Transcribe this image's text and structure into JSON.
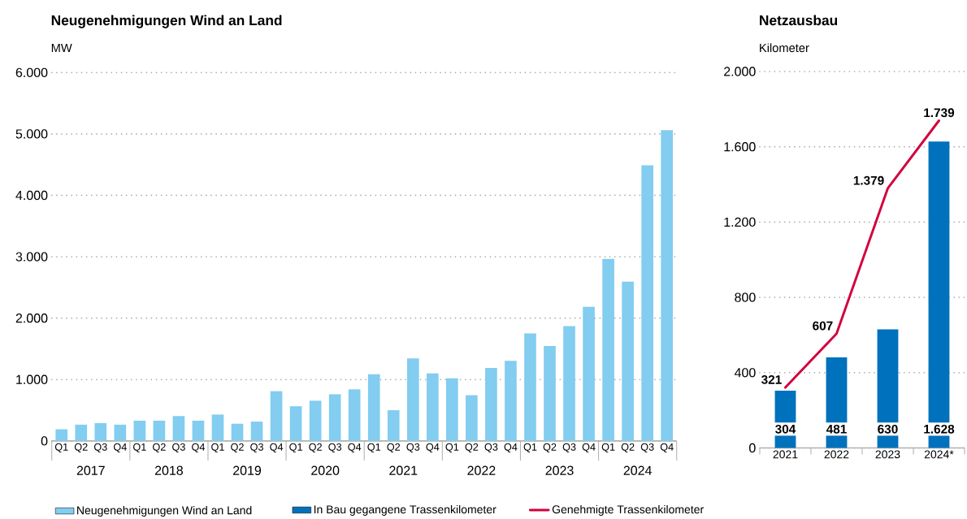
{
  "chart_data": [
    {
      "type": "bar",
      "title": "Neugenehmigungen Wind an Land",
      "ylabel": "MW",
      "categories": [
        "Q1",
        "Q2",
        "Q3",
        "Q4",
        "Q1",
        "Q2",
        "Q3",
        "Q4",
        "Q1",
        "Q2",
        "Q3",
        "Q4",
        "Q1",
        "Q2",
        "Q3",
        "Q4",
        "Q1",
        "Q2",
        "Q3",
        "Q4",
        "Q1",
        "Q2",
        "Q3",
        "Q4",
        "Q1",
        "Q2",
        "Q3",
        "Q4",
        "Q1",
        "Q2",
        "Q3",
        "Q4"
      ],
      "annotations": [
        "2017",
        "2018",
        "2019",
        "2020",
        "2021",
        "2022",
        "2023",
        "2024"
      ],
      "series": [
        {
          "name": "Neugenehmigungen Wind an Land",
          "color": "#82cdf0",
          "values": [
            190,
            265,
            290,
            265,
            330,
            330,
            405,
            330,
            430,
            280,
            315,
            810,
            565,
            655,
            760,
            840,
            1085,
            500,
            1345,
            1100,
            1020,
            745,
            1190,
            1305,
            1750,
            1545,
            1870,
            2185,
            2965,
            2595,
            4490,
            5060
          ]
        }
      ],
      "ylim": [
        0,
        6000
      ],
      "yticks": [
        0,
        {
          "value": 1000,
          "label": "1.000"
        },
        {
          "value": 2000,
          "label": "2.000"
        },
        {
          "value": 3000,
          "label": "3.000"
        },
        {
          "value": 4000,
          "label": "4.000"
        },
        {
          "value": 5000,
          "label": "5.000"
        },
        {
          "value": 6000,
          "label": "6.000"
        }
      ],
      "grid": "y",
      "legend": "bottom"
    },
    {
      "type": "bar",
      "title": "Netzausbau",
      "ylabel": "Kilometer",
      "categories": [
        "2021",
        "2022",
        "2023",
        "2024*"
      ],
      "series": [
        {
          "name": "In Bau gegangene Trassenkilometer",
          "color": "#0071bc",
          "values": [
            304,
            481,
            630,
            1628
          ],
          "value_labels": [
            "304",
            "481",
            "630",
            "1.628"
          ]
        },
        {
          "name": "Genehmigte Trassenkilometer",
          "type": "line",
          "color": "#d2003c",
          "values": [
            321,
            607,
            1379,
            1739
          ],
          "value_labels": [
            "321",
            "607",
            "1.379",
            "1.739"
          ]
        }
      ],
      "ylim": [
        0,
        2000
      ],
      "yticks": [
        0,
        400,
        800,
        {
          "value": 1200,
          "label": "1.200"
        },
        {
          "value": 1600,
          "label": "1.600"
        },
        {
          "value": 2000,
          "label": "2.000"
        }
      ],
      "grid": "y",
      "legend": "bottom"
    }
  ]
}
